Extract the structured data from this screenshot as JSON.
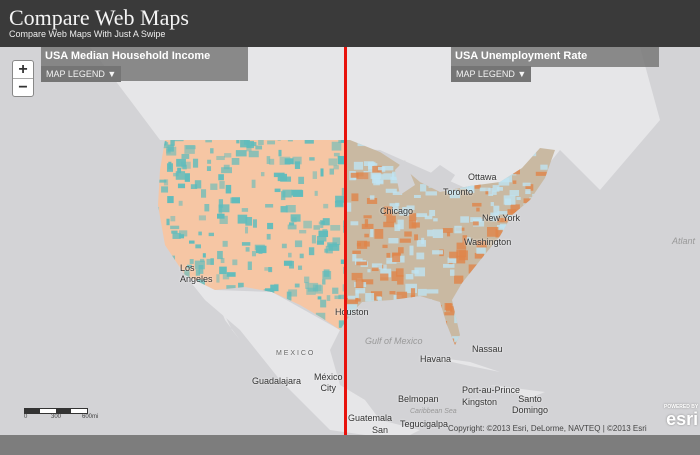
{
  "header": {
    "title": "Compare Web Maps",
    "subtitle": "Compare Web Maps With Just A Swipe"
  },
  "left_map": {
    "title": "USA Median Household Income",
    "legend_label": "MAP LEGEND ▼"
  },
  "right_map": {
    "title": "USA Unemployment Rate",
    "legend_label": "MAP LEGEND ▼"
  },
  "zoom": {
    "in": "+",
    "out": "−"
  },
  "labels": {
    "ottawa": "Ottawa",
    "toronto": "Toronto",
    "chicago": "Chicago",
    "new_york": "New York",
    "washington": "Washington",
    "atlantic": "Atlant",
    "los_angeles": "Los\nAngeles",
    "houston": "Houston",
    "gulf": "Gulf of Mexico",
    "nassau": "Nassau",
    "havana": "Havana",
    "mexico": "M E X I C O",
    "guadalajara": "Guadalajara",
    "mexico_city": "México\nCity",
    "belmopan": "Belmopan",
    "port_au_prince": "Port-au-Prince",
    "kingston": "Kingston",
    "santo_domingo": "Santo\nDomingo",
    "guatemala": "Guatemala",
    "san": "San",
    "tegucigalpa": "Tegucigalpa",
    "caribbean": "Caribbean Sea"
  },
  "scale": {
    "t0": "0",
    "t1": "300",
    "t2": "600mi"
  },
  "copyright": "Copyright: ©2013 Esri, DeLorme, NAVTEQ | ©2013 Esri",
  "esri": {
    "powered": "POWERED BY",
    "logo": "esri"
  },
  "colors": {
    "swipe": "#e8120c",
    "income_base": "#f6c6a4",
    "income_high": "#5fbcbc",
    "unemp_low": "#bfe3f2",
    "unemp_mid": "#c9b9a2",
    "unemp_high": "#e0844a"
  }
}
